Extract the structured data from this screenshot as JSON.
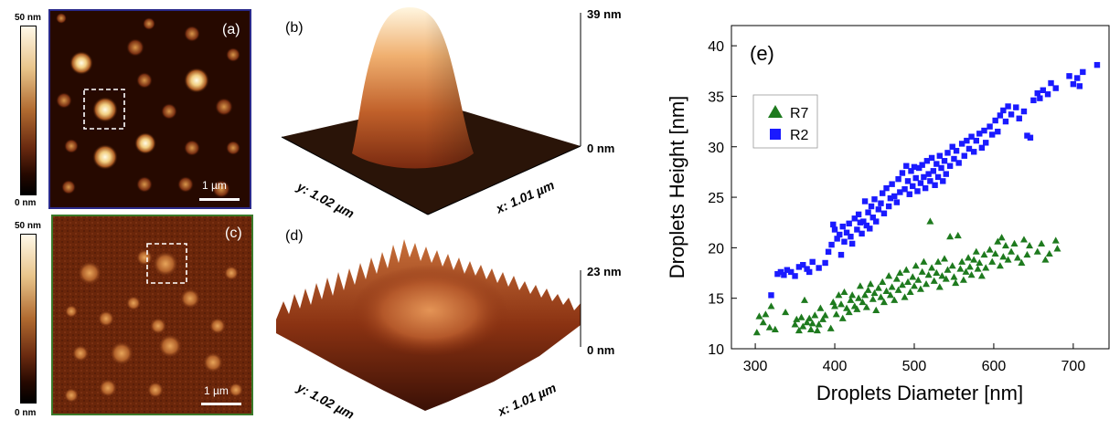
{
  "afm_a": {
    "label": "(a)",
    "scalebar_label": "1 µm",
    "colorbar_max": "50 nm",
    "colorbar_min": "0 nm",
    "border_color": "#2a2a8a"
  },
  "afm_c": {
    "label": "(c)",
    "scalebar_label": "1 µm",
    "colorbar_max": "50 nm",
    "colorbar_min": "0 nm",
    "border_color": "#3a7a2a"
  },
  "surface_b": {
    "label": "(b)",
    "z_max": "39 nm",
    "z_min": "0 nm",
    "y_axis": "y: 1.02 µm",
    "x_axis": "x: 1.01 µm"
  },
  "surface_d": {
    "label": "(d)",
    "z_max": "23 nm",
    "z_min": "0 nm",
    "y_axis": "y: 1.02 µm",
    "x_axis": "x: 1.01 µm"
  },
  "chart_data": {
    "type": "scatter",
    "panel_label": "(e)",
    "xlabel": "Droplets Diameter [nm]",
    "ylabel": "Droplets Height [nm]",
    "xlim": [
      270,
      745
    ],
    "ylim": [
      10,
      42
    ],
    "xticks": [
      300,
      400,
      500,
      600,
      700
    ],
    "yticks": [
      10,
      15,
      20,
      25,
      30,
      35,
      40
    ],
    "grid": false,
    "legend_position": "top-left",
    "series": [
      {
        "name": "R7",
        "marker": "triangle",
        "color": "#1e7a1e",
        "points": [
          [
            302,
            11.6
          ],
          [
            305,
            13.2
          ],
          [
            310,
            12.6
          ],
          [
            313,
            13.4
          ],
          [
            318,
            12.1
          ],
          [
            320,
            14.2
          ],
          [
            325,
            11.9
          ],
          [
            338,
            13.6
          ],
          [
            350,
            12.4
          ],
          [
            352,
            12.9
          ],
          [
            355,
            11.8
          ],
          [
            358,
            13.1
          ],
          [
            360,
            12.2
          ],
          [
            362,
            14.8
          ],
          [
            365,
            12.6
          ],
          [
            368,
            13.0
          ],
          [
            370,
            11.9
          ],
          [
            372,
            12.5
          ],
          [
            375,
            13.3
          ],
          [
            378,
            11.8
          ],
          [
            380,
            12.4
          ],
          [
            382,
            14.0
          ],
          [
            385,
            12.9
          ],
          [
            388,
            13.3
          ],
          [
            395,
            12.0
          ],
          [
            398,
            14.6
          ],
          [
            400,
            14.2
          ],
          [
            402,
            13.4
          ],
          [
            405,
            15.3
          ],
          [
            408,
            14.4
          ],
          [
            410,
            13.0
          ],
          [
            412,
            15.6
          ],
          [
            415,
            14.0
          ],
          [
            418,
            13.6
          ],
          [
            420,
            14.8
          ],
          [
            422,
            15.3
          ],
          [
            425,
            14.2
          ],
          [
            428,
            13.9
          ],
          [
            430,
            15.0
          ],
          [
            432,
            16.2
          ],
          [
            435,
            14.6
          ],
          [
            438,
            15.3
          ],
          [
            440,
            14.1
          ],
          [
            442,
            15.8
          ],
          [
            445,
            16.4
          ],
          [
            448,
            14.9
          ],
          [
            450,
            15.5
          ],
          [
            452,
            13.8
          ],
          [
            455,
            16.0
          ],
          [
            458,
            15.1
          ],
          [
            460,
            16.6
          ],
          [
            462,
            14.6
          ],
          [
            465,
            15.7
          ],
          [
            468,
            17.2
          ],
          [
            470,
            15.3
          ],
          [
            472,
            16.1
          ],
          [
            475,
            14.8
          ],
          [
            478,
            16.9
          ],
          [
            480,
            15.8
          ],
          [
            482,
            17.5
          ],
          [
            485,
            16.3
          ],
          [
            488,
            15.1
          ],
          [
            490,
            17.8
          ],
          [
            492,
            16.6
          ],
          [
            495,
            15.6
          ],
          [
            498,
            17.1
          ],
          [
            500,
            16.2
          ],
          [
            502,
            18.2
          ],
          [
            505,
            16.8
          ],
          [
            508,
            15.9
          ],
          [
            510,
            17.6
          ],
          [
            512,
            18.6
          ],
          [
            515,
            16.4
          ],
          [
            518,
            17.3
          ],
          [
            520,
            22.6
          ],
          [
            522,
            18.0
          ],
          [
            525,
            16.7
          ],
          [
            528,
            17.5
          ],
          [
            530,
            18.6
          ],
          [
            532,
            16.1
          ],
          [
            535,
            17.2
          ],
          [
            538,
            18.9
          ],
          [
            540,
            16.9
          ],
          [
            542,
            17.8
          ],
          [
            545,
            21.1
          ],
          [
            548,
            18.2
          ],
          [
            550,
            17.1
          ],
          [
            552,
            16.5
          ],
          [
            555,
            21.2
          ],
          [
            558,
            17.9
          ],
          [
            560,
            18.6
          ],
          [
            562,
            16.8
          ],
          [
            565,
            17.6
          ],
          [
            568,
            19.0
          ],
          [
            570,
            18.1
          ],
          [
            572,
            17.3
          ],
          [
            575,
            18.8
          ],
          [
            578,
            19.6
          ],
          [
            580,
            17.9
          ],
          [
            582,
            18.5
          ],
          [
            585,
            17.2
          ],
          [
            588,
            19.3
          ],
          [
            590,
            18.0
          ],
          [
            595,
            19.8
          ],
          [
            598,
            18.6
          ],
          [
            602,
            19.4
          ],
          [
            605,
            20.6
          ],
          [
            608,
            18.2
          ],
          [
            610,
            21.0
          ],
          [
            612,
            19.1
          ],
          [
            615,
            20.2
          ],
          [
            618,
            18.8
          ],
          [
            622,
            19.6
          ],
          [
            626,
            20.4
          ],
          [
            630,
            19.0
          ],
          [
            635,
            18.5
          ],
          [
            638,
            20.8
          ],
          [
            642,
            19.3
          ],
          [
            645,
            20.2
          ],
          [
            655,
            19.6
          ],
          [
            660,
            20.4
          ],
          [
            665,
            18.8
          ],
          [
            670,
            19.4
          ],
          [
            678,
            20.7
          ],
          [
            680,
            19.9
          ]
        ]
      },
      {
        "name": "R2",
        "marker": "square",
        "color": "#1a1aff",
        "points": [
          [
            320,
            15.3
          ],
          [
            328,
            17.4
          ],
          [
            332,
            17.6
          ],
          [
            336,
            17.3
          ],
          [
            340,
            17.8
          ],
          [
            345,
            17.6
          ],
          [
            350,
            17.2
          ],
          [
            355,
            18.1
          ],
          [
            360,
            18.3
          ],
          [
            365,
            17.9
          ],
          [
            368,
            17.6
          ],
          [
            372,
            18.6
          ],
          [
            380,
            18.0
          ],
          [
            388,
            18.5
          ],
          [
            392,
            19.6
          ],
          [
            396,
            20.3
          ],
          [
            398,
            22.3
          ],
          [
            400,
            21.8
          ],
          [
            403,
            20.9
          ],
          [
            406,
            21.3
          ],
          [
            408,
            19.3
          ],
          [
            410,
            22.1
          ],
          [
            412,
            20.6
          ],
          [
            415,
            21.5
          ],
          [
            418,
            22.4
          ],
          [
            420,
            21.1
          ],
          [
            422,
            20.4
          ],
          [
            425,
            22.9
          ],
          [
            428,
            21.8
          ],
          [
            430,
            23.3
          ],
          [
            432,
            22.5
          ],
          [
            434,
            21.4
          ],
          [
            436,
            22.6
          ],
          [
            438,
            24.6
          ],
          [
            440,
            22.2
          ],
          [
            442,
            23.5
          ],
          [
            444,
            21.9
          ],
          [
            446,
            24.1
          ],
          [
            448,
            23.0
          ],
          [
            450,
            24.8
          ],
          [
            452,
            22.6
          ],
          [
            455,
            23.8
          ],
          [
            458,
            24.4
          ],
          [
            460,
            25.4
          ],
          [
            462,
            23.4
          ],
          [
            465,
            25.9
          ],
          [
            468,
            24.1
          ],
          [
            470,
            24.9
          ],
          [
            472,
            26.3
          ],
          [
            475,
            25.1
          ],
          [
            478,
            24.5
          ],
          [
            480,
            26.8
          ],
          [
            482,
            25.5
          ],
          [
            485,
            27.4
          ],
          [
            488,
            25.8
          ],
          [
            490,
            28.1
          ],
          [
            492,
            26.6
          ],
          [
            494,
            25.3
          ],
          [
            496,
            27.6
          ],
          [
            498,
            26.1
          ],
          [
            500,
            28.0
          ],
          [
            502,
            26.9
          ],
          [
            504,
            25.6
          ],
          [
            506,
            27.9
          ],
          [
            508,
            26.4
          ],
          [
            510,
            28.2
          ],
          [
            512,
            27.0
          ],
          [
            514,
            25.9
          ],
          [
            516,
            28.6
          ],
          [
            518,
            27.3
          ],
          [
            520,
            26.6
          ],
          [
            522,
            28.9
          ],
          [
            524,
            27.6
          ],
          [
            526,
            26.2
          ],
          [
            528,
            28.3
          ],
          [
            530,
            27.0
          ],
          [
            532,
            29.1
          ],
          [
            534,
            27.9
          ],
          [
            536,
            26.6
          ],
          [
            538,
            28.6
          ],
          [
            540,
            27.3
          ],
          [
            542,
            29.4
          ],
          [
            545,
            28.1
          ],
          [
            548,
            30.0
          ],
          [
            550,
            28.8
          ],
          [
            553,
            29.6
          ],
          [
            556,
            28.4
          ],
          [
            560,
            30.3
          ],
          [
            563,
            29.1
          ],
          [
            566,
            30.6
          ],
          [
            569,
            29.8
          ],
          [
            572,
            31.0
          ],
          [
            575,
            29.5
          ],
          [
            578,
            30.6
          ],
          [
            582,
            31.3
          ],
          [
            585,
            29.9
          ],
          [
            588,
            31.6
          ],
          [
            590,
            30.4
          ],
          [
            595,
            32.0
          ],
          [
            598,
            31.2
          ],
          [
            602,
            32.6
          ],
          [
            605,
            31.5
          ],
          [
            608,
            33.1
          ],
          [
            612,
            33.6
          ],
          [
            615,
            32.5
          ],
          [
            618,
            34.0
          ],
          [
            622,
            33.2
          ],
          [
            628,
            33.9
          ],
          [
            632,
            32.8
          ],
          [
            638,
            33.5
          ],
          [
            642,
            31.1
          ],
          [
            646,
            30.9
          ],
          [
            650,
            34.6
          ],
          [
            655,
            35.3
          ],
          [
            658,
            34.8
          ],
          [
            662,
            35.6
          ],
          [
            668,
            35.2
          ],
          [
            672,
            36.3
          ],
          [
            678,
            35.8
          ],
          [
            695,
            37.0
          ],
          [
            700,
            36.2
          ],
          [
            705,
            36.8
          ],
          [
            708,
            36.0
          ],
          [
            712,
            37.4
          ],
          [
            730,
            38.1
          ]
        ]
      }
    ]
  }
}
